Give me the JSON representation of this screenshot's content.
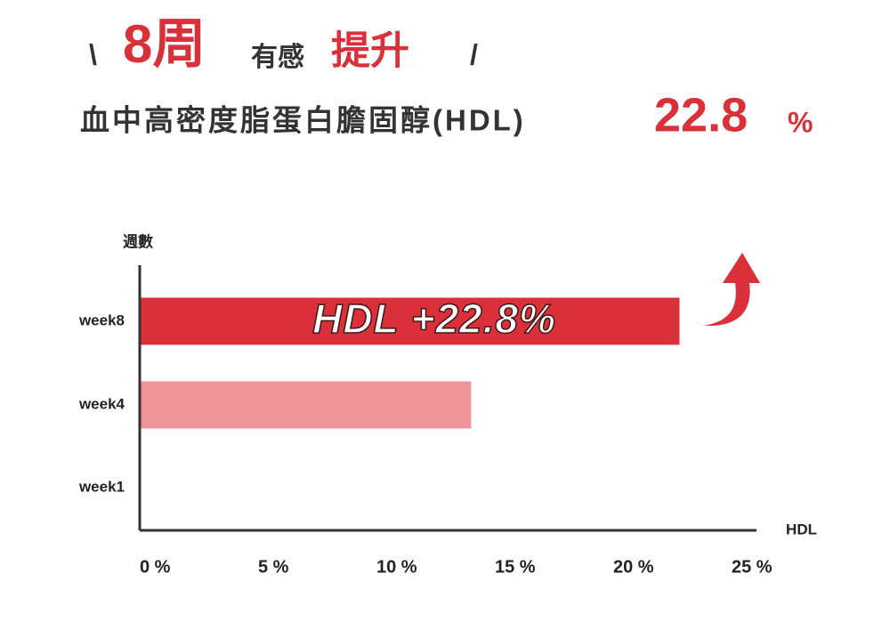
{
  "header": {
    "left_mark": "\\",
    "weeks": "8周",
    "middle": "有感",
    "emphasis": "提升",
    "right_mark": "/"
  },
  "subtitle": {
    "text": "血中高密度脂蛋白膽固醇(HDL)",
    "highlight_value": "22.8",
    "highlight_unit": "%"
  },
  "chart_data": {
    "type": "bar",
    "orientation": "horizontal",
    "y_label": "週數",
    "x_label": "HDL",
    "categories": [
      "week8",
      "week4",
      "week1"
    ],
    "values": [
      22.8,
      14,
      0
    ],
    "colors": [
      "#d9303a",
      "#ec9499",
      "#ec9499"
    ],
    "annotation": "HDL +22.8%",
    "xlim": [
      0,
      25
    ],
    "xticks": [
      {
        "value": 0,
        "label": "0 %"
      },
      {
        "value": 5,
        "label": "5 %"
      },
      {
        "value": 10,
        "label": "10 %"
      },
      {
        "value": 15,
        "label": "15 %"
      },
      {
        "value": 20,
        "label": "20 %"
      },
      {
        "value": 25,
        "label": "25 %"
      }
    ]
  }
}
